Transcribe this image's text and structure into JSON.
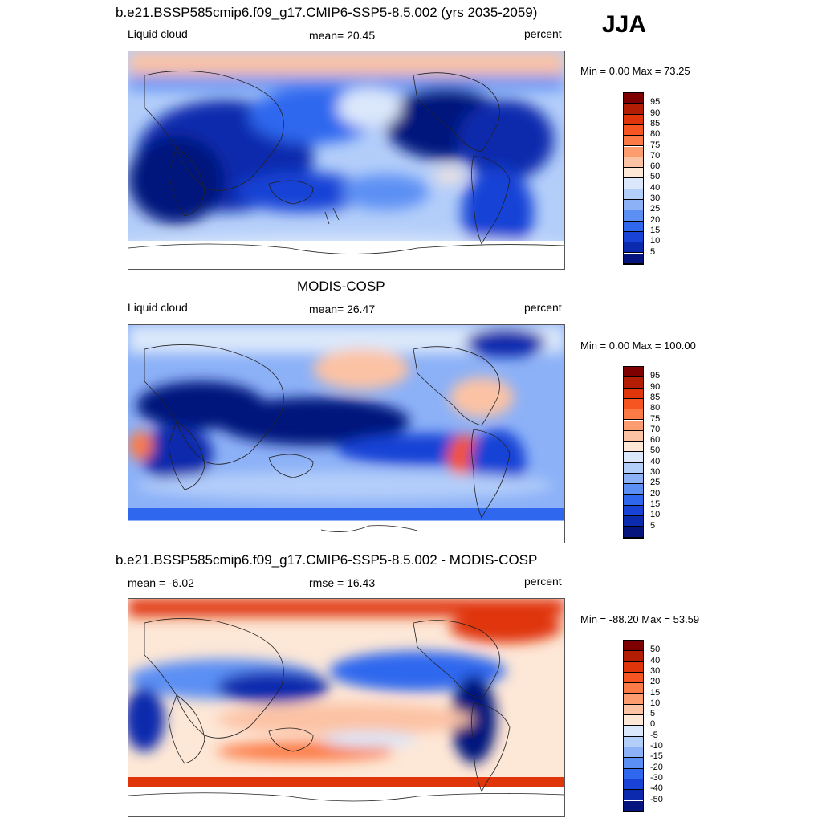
{
  "season": "JJA",
  "panels": [
    {
      "title": "b.e21.BSSP585cmip6.f09_g17.CMIP6-SSP5-8.5.002 (yrs 2035-2059)",
      "left_label": "Liquid cloud",
      "center_label": "mean=  20.45",
      "right_label": "percent",
      "minmax": "Min =   0.00 Max =  73.25",
      "colorbar": {
        "labels": [
          "95",
          "90",
          "85",
          "80",
          "75",
          "70",
          "60",
          "50",
          "40",
          "30",
          "25",
          "20",
          "15",
          "10",
          "5"
        ],
        "colors": [
          "#7f0000",
          "#b31d04",
          "#e0350a",
          "#f65521",
          "#fc7a45",
          "#fc9c6f",
          "#fcc2a4",
          "#fde7d6",
          "#dbe8fb",
          "#b4cefa",
          "#8cb1f7",
          "#5b8ff4",
          "#2f67ef",
          "#1942d6",
          "#0c2aad",
          "#06157d"
        ]
      }
    },
    {
      "title": "MODIS-COSP",
      "left_label": "Liquid cloud",
      "center_label": "mean=  26.47",
      "right_label": "percent",
      "minmax": "Min =   0.00 Max = 100.00",
      "colorbar": {
        "labels": [
          "95",
          "90",
          "85",
          "80",
          "75",
          "70",
          "60",
          "50",
          "40",
          "30",
          "25",
          "20",
          "15",
          "10",
          "5"
        ],
        "colors": [
          "#7f0000",
          "#b31d04",
          "#e0350a",
          "#f65521",
          "#fc7a45",
          "#fc9c6f",
          "#fcc2a4",
          "#fde7d6",
          "#dbe8fb",
          "#b4cefa",
          "#8cb1f7",
          "#5b8ff4",
          "#2f67ef",
          "#1942d6",
          "#0c2aad",
          "#06157d"
        ]
      }
    },
    {
      "title": "b.e21.BSSP585cmip6.f09_g17.CMIP6-SSP5-8.5.002 - MODIS-COSP",
      "left_label": "mean =  -6.02",
      "center_label": "rmse =  16.43",
      "right_label": "percent",
      "minmax": "Min = -88.20 Max =  53.59",
      "colorbar": {
        "labels": [
          "50",
          "40",
          "30",
          "20",
          "15",
          "10",
          "5",
          "0",
          "-5",
          "-10",
          "-15",
          "-20",
          "-30",
          "-40",
          "-50"
        ],
        "colors": [
          "#7f0000",
          "#b31d04",
          "#e0350a",
          "#f65521",
          "#fc7a45",
          "#fc9c6f",
          "#fcc2a4",
          "#fde7d6",
          "#dbe8fb",
          "#b4cefa",
          "#8cb1f7",
          "#5b8ff4",
          "#2f67ef",
          "#1942d6",
          "#0c2aad",
          "#06157d"
        ]
      }
    }
  ]
}
